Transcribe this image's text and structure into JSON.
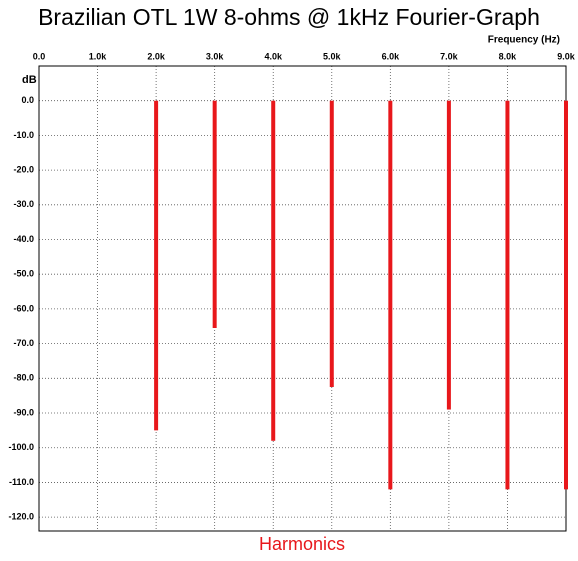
{
  "chart_data": {
    "type": "bar",
    "title": "Brazilian OTL 1W 8-ohms @ 1kHz Fourier-Graph",
    "x_label": "Frequency  (Hz)",
    "y_label": "dB",
    "bottom_label": "Harmonics",
    "x": [
      2000,
      3000,
      4000,
      5000,
      6000,
      7000,
      8000,
      9000
    ],
    "series": [
      {
        "name": "Harmonics",
        "color": "#e8171b",
        "values": [
          -95,
          -65.5,
          -98,
          -82.5,
          -112,
          -89,
          -112,
          -112
        ]
      }
    ],
    "xlim": [
      0,
      9000
    ],
    "xticks": [
      {
        "value": 0,
        "label": "0.0"
      },
      {
        "value": 1000,
        "label": "1.0k"
      },
      {
        "value": 2000,
        "label": "2.0k"
      },
      {
        "value": 3000,
        "label": "3.0k"
      },
      {
        "value": 4000,
        "label": "4.0k"
      },
      {
        "value": 5000,
        "label": "5.0k"
      },
      {
        "value": 6000,
        "label": "6.0k"
      },
      {
        "value": 7000,
        "label": "7.0k"
      },
      {
        "value": 8000,
        "label": "8.0k"
      },
      {
        "value": 9000,
        "label": "9.0k"
      }
    ],
    "ylim": [
      -124,
      10
    ],
    "yticks": [
      {
        "value": 0,
        "label": "0.0"
      },
      {
        "value": -10,
        "label": "-10.0"
      },
      {
        "value": -20,
        "label": "-20.0"
      },
      {
        "value": -30,
        "label": "-30.0"
      },
      {
        "value": -40,
        "label": "-40.0"
      },
      {
        "value": -50,
        "label": "-50.0"
      },
      {
        "value": -60,
        "label": "-60.0"
      },
      {
        "value": -70,
        "label": "-70.0"
      },
      {
        "value": -80,
        "label": "-80.0"
      },
      {
        "value": -90,
        "label": "-90.0"
      },
      {
        "value": -100,
        "label": "-100.0"
      },
      {
        "value": -110,
        "label": "-110.0"
      },
      {
        "value": -120,
        "label": "-120.0"
      }
    ],
    "grid": true
  }
}
